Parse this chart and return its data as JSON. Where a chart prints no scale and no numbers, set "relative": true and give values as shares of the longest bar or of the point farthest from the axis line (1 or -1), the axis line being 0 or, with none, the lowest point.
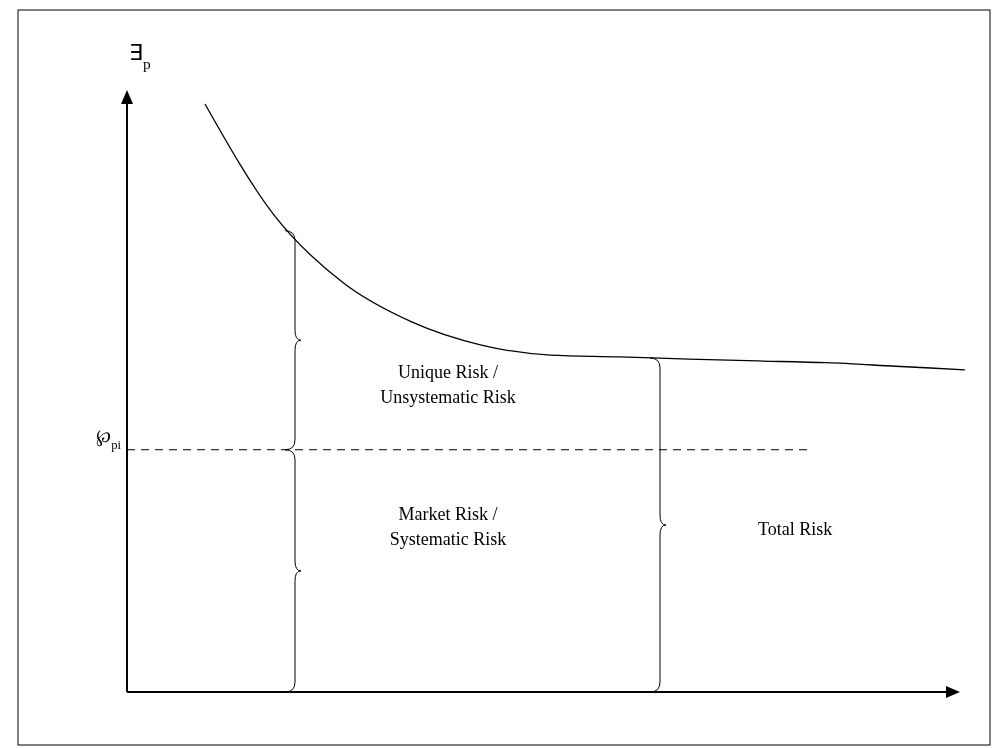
{
  "chart_data": {
    "type": "line",
    "relative": true,
    "ylabel": "∃$_{p}$",
    "categories": [
      null,
      null,
      null,
      null,
      null,
      null,
      null,
      null,
      null,
      null,
      null,
      null
    ],
    "series": [
      {
        "color": "#000000",
        "values": [
          1,
          0.811,
          0.696,
          0.629,
          0.59,
          0.573,
          0.57,
          0.566,
          0.563,
          0.56,
          0.554,
          0.548
        ]
      }
    ],
    "ref_lines": [
      {
        "axis": "y",
        "value": 0.412,
        "label": "℘$_{pi}$",
        "color": "#000000",
        "line_style": "dashed"
      }
    ],
    "annotations": [
      "Unique Risk / Unsystematic Risk",
      "Market Risk / Systematic Risk",
      "Total Risk"
    ],
    "line_style": "solid",
    "marker": "none"
  }
}
